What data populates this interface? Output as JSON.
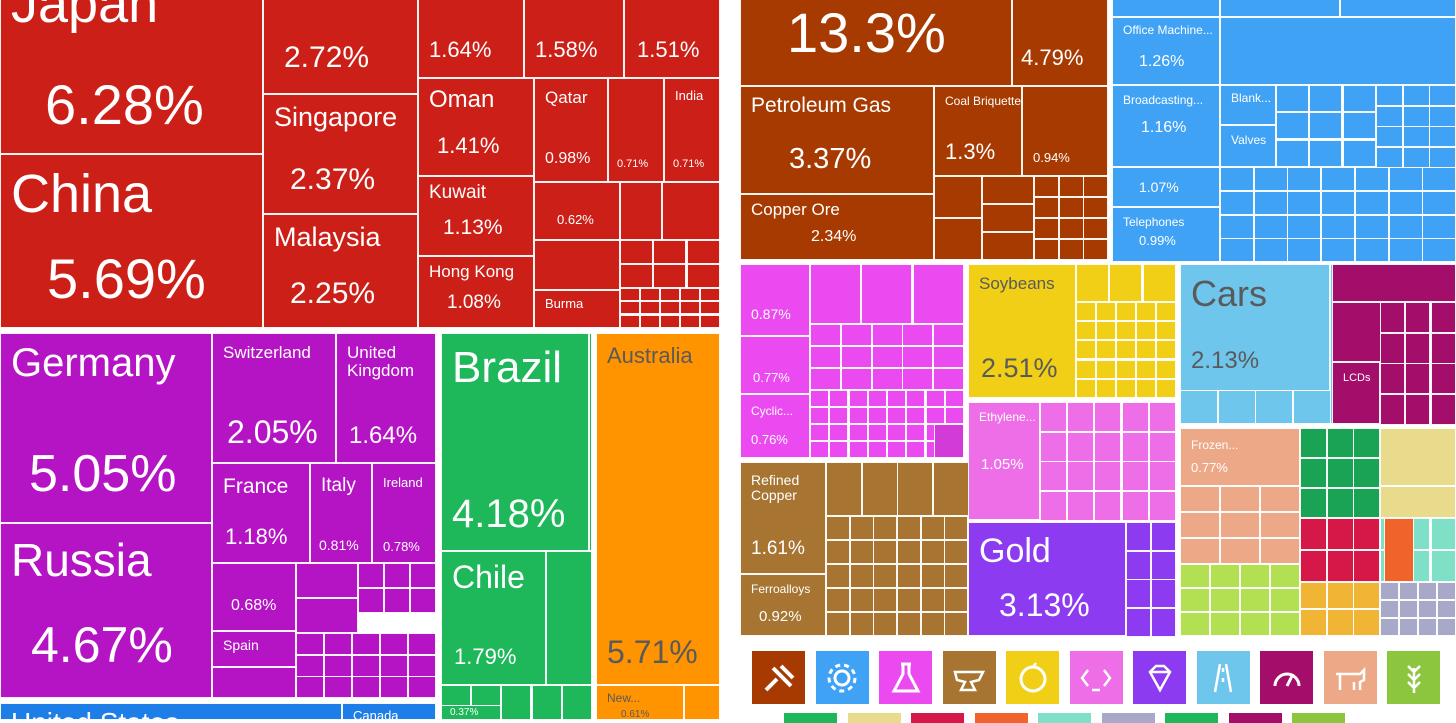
{
  "chart_data": [
    {
      "type": "treemap",
      "title": "",
      "items": [
        {
          "name": "Japan",
          "value": "6.28%",
          "region": "asia"
        },
        {
          "name": "China",
          "value": "5.69%",
          "region": "asia"
        },
        {
          "name": "",
          "value": "2.72%",
          "region": "asia"
        },
        {
          "name": "Singapore",
          "value": "2.37%",
          "region": "asia"
        },
        {
          "name": "Malaysia",
          "value": "2.25%",
          "region": "asia"
        },
        {
          "name": "",
          "value": "1.64%",
          "region": "asia"
        },
        {
          "name": "",
          "value": "1.58%",
          "region": "asia"
        },
        {
          "name": "",
          "value": "1.51%",
          "region": "asia"
        },
        {
          "name": "Oman",
          "value": "1.41%",
          "region": "asia"
        },
        {
          "name": "Qatar",
          "value": "0.98%",
          "region": "asia"
        },
        {
          "name": "India",
          "value": "0.71%",
          "region": "asia"
        },
        {
          "name": "",
          "value": "0.71%",
          "region": "asia"
        },
        {
          "name": "Kuwait",
          "value": "1.13%",
          "region": "asia"
        },
        {
          "name": "",
          "value": "0.62%",
          "region": "asia"
        },
        {
          "name": "Hong Kong",
          "value": "1.08%",
          "region": "asia"
        },
        {
          "name": "Burma",
          "value": "",
          "region": "asia"
        },
        {
          "name": "Germany",
          "value": "5.05%",
          "region": "europe"
        },
        {
          "name": "Russia",
          "value": "4.67%",
          "region": "europe"
        },
        {
          "name": "Switzerland",
          "value": "2.05%",
          "region": "europe"
        },
        {
          "name": "United Kingdom",
          "value": "1.64%",
          "region": "europe"
        },
        {
          "name": "France",
          "value": "1.18%",
          "region": "europe"
        },
        {
          "name": "Italy",
          "value": "0.81%",
          "region": "europe"
        },
        {
          "name": "Ireland",
          "value": "0.78%",
          "region": "europe"
        },
        {
          "name": "",
          "value": "0.68%",
          "region": "europe"
        },
        {
          "name": "Spain",
          "value": "",
          "region": "europe"
        },
        {
          "name": "Brazil",
          "value": "4.18%",
          "region": "south-america"
        },
        {
          "name": "Chile",
          "value": "1.79%",
          "region": "south-america"
        },
        {
          "name": "",
          "value": "0.37%",
          "region": "south-america"
        },
        {
          "name": "Australia",
          "value": "5.71%",
          "region": "oceania"
        },
        {
          "name": "New...",
          "value": "0.61%",
          "region": "oceania"
        },
        {
          "name": "United States",
          "value": "",
          "region": "north-america"
        },
        {
          "name": "Canada",
          "value": "",
          "region": "north-america"
        }
      ]
    },
    {
      "type": "treemap",
      "title": "",
      "items": [
        {
          "name": "",
          "value": "13.3%",
          "sector": "minerals"
        },
        {
          "name": "",
          "value": "4.79%",
          "sector": "minerals"
        },
        {
          "name": "Petroleum Gas",
          "value": "3.37%",
          "sector": "minerals"
        },
        {
          "name": "Coal Briquettes",
          "value": "1.3%",
          "sector": "minerals"
        },
        {
          "name": "",
          "value": "0.94%",
          "sector": "minerals"
        },
        {
          "name": "Copper Ore",
          "value": "2.34%",
          "sector": "minerals"
        },
        {
          "name": "Office Machine...",
          "value": "1.26%",
          "sector": "machines"
        },
        {
          "name": "Broadcasting...",
          "value": "1.16%",
          "sector": "machines"
        },
        {
          "name": "Blank...",
          "value": "",
          "sector": "machines"
        },
        {
          "name": "Valves",
          "value": "",
          "sector": "machines"
        },
        {
          "name": "",
          "value": "1.07%",
          "sector": "machines"
        },
        {
          "name": "Telephones",
          "value": "0.99%",
          "sector": "machines"
        },
        {
          "name": "",
          "value": "0.87%",
          "sector": "chemicals"
        },
        {
          "name": "",
          "value": "0.77%",
          "sector": "chemicals"
        },
        {
          "name": "Cyclic...",
          "value": "0.76%",
          "sector": "chemicals"
        },
        {
          "name": "Soybeans",
          "value": "2.51%",
          "sector": "vegetables"
        },
        {
          "name": "Ethylene...",
          "value": "1.05%",
          "sector": "plastics"
        },
        {
          "name": "Cars",
          "value": "2.13%",
          "sector": "transportation"
        },
        {
          "name": "LCDs",
          "value": "",
          "sector": "instruments"
        },
        {
          "name": "Frozen...",
          "value": "0.77%",
          "sector": "animal-products"
        },
        {
          "name": "Refined Copper",
          "value": "1.61%",
          "sector": "metals"
        },
        {
          "name": "Ferroalloys",
          "value": "0.92%",
          "sector": "metals"
        },
        {
          "name": "Gold",
          "value": "3.13%",
          "sector": "precious-metals"
        }
      ]
    }
  ],
  "colors": {
    "asia": "#cc1f17",
    "europe": "#b514c5",
    "south-america": "#1eb85a",
    "oceania": "#ff9300",
    "north-america": "#1d7ee8",
    "minerals": "#a63a00",
    "machines": "#3fa2f5",
    "chemicals": "#ea4af0",
    "vegetables": "#f2cf17",
    "plastics": "#ee6ee8",
    "transportation": "#6fc6ec",
    "instruments": "#a20e6a",
    "animal-products": "#eda887",
    "metals": "#a77432",
    "precious-metals": "#8c3bf0",
    "foodstuffs": "#e8dc8c",
    "textiles": "#1aa354",
    "misc": "#b2e052"
  },
  "category_icons": [
    {
      "name": "minerals-icon",
      "color": "#a63a00"
    },
    {
      "name": "machines-icon",
      "color": "#3fa2f5"
    },
    {
      "name": "chemicals-icon",
      "color": "#ea4af0"
    },
    {
      "name": "metals-icon",
      "color": "#a77432"
    },
    {
      "name": "vegetables-icon",
      "color": "#f2cf17"
    },
    {
      "name": "plastics-icon",
      "color": "#ee6ee8"
    },
    {
      "name": "precious-metals-icon",
      "color": "#8c3bf0"
    },
    {
      "name": "transportation-icon",
      "color": "#6fc6ec"
    },
    {
      "name": "instruments-icon",
      "color": "#a20e6a"
    },
    {
      "name": "animal-products-icon",
      "color": "#eda887"
    },
    {
      "name": "foodstuffs-icon",
      "color": "#8cc63f"
    }
  ]
}
